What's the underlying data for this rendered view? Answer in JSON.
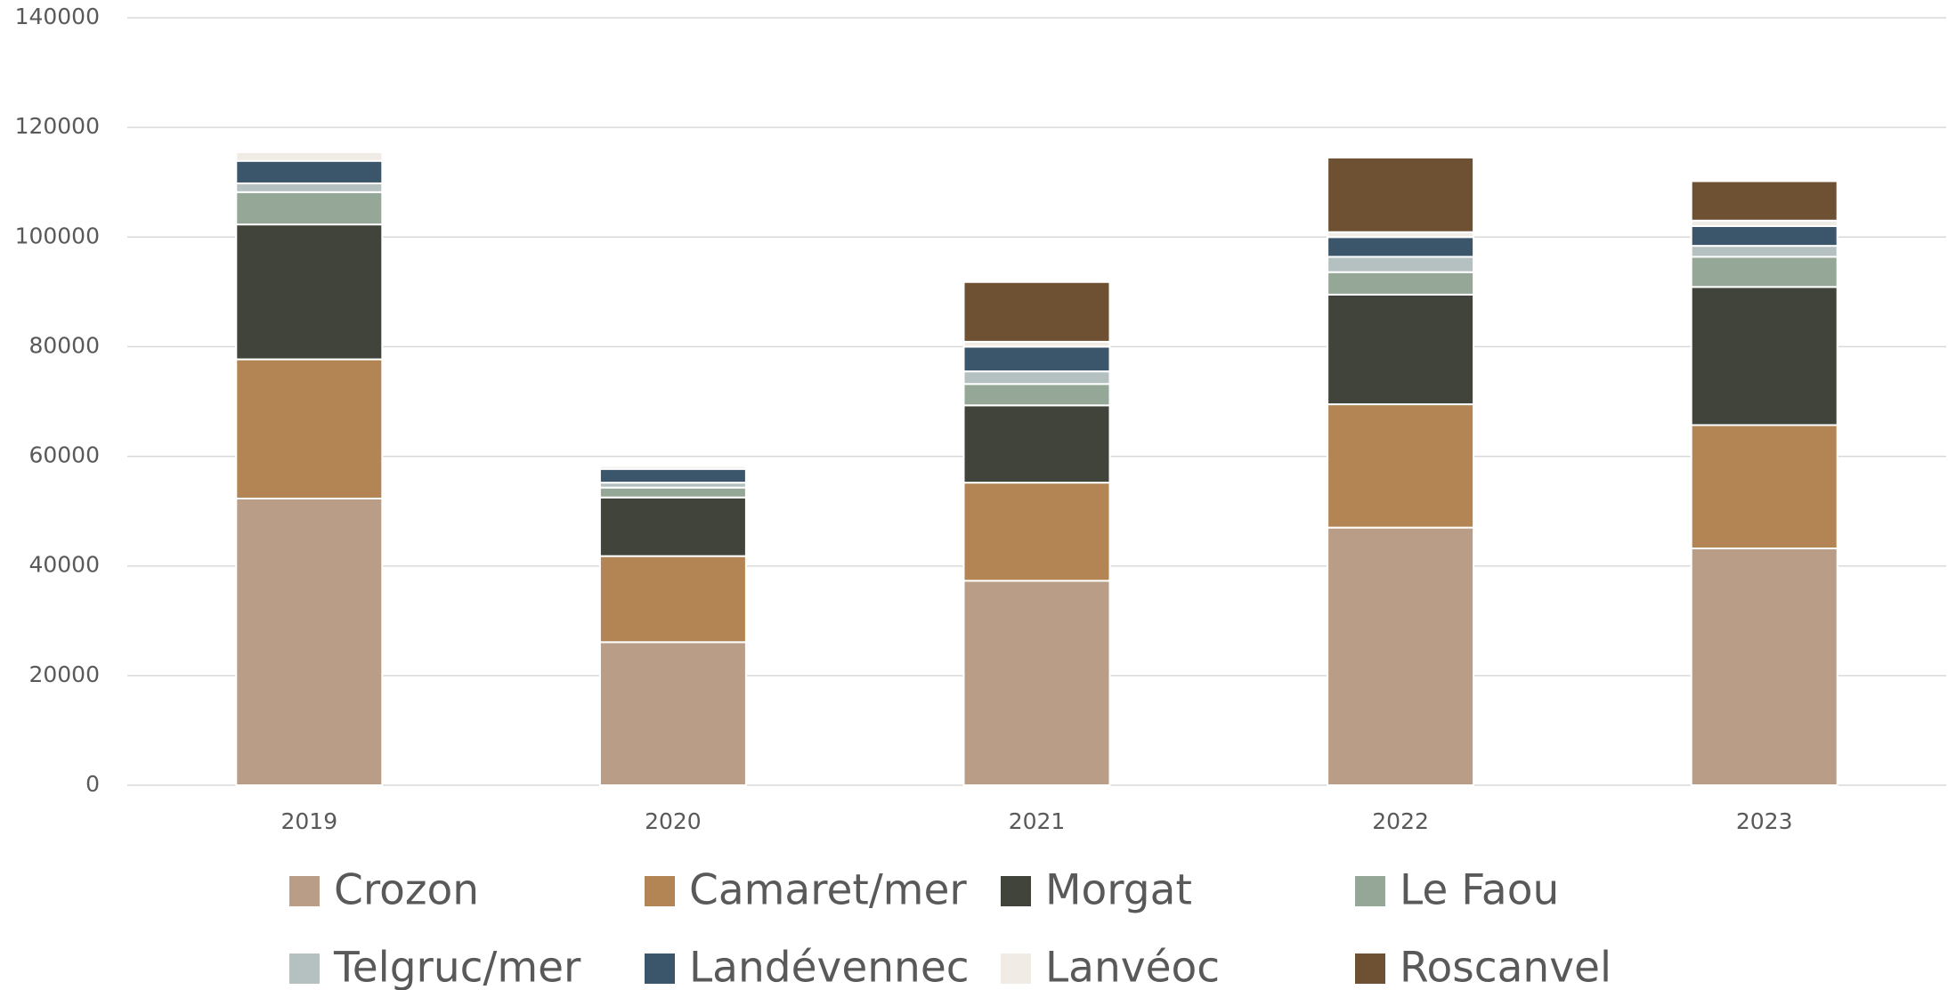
{
  "chart_data": {
    "type": "stacked_bar",
    "categories": [
      "2019",
      "2020",
      "2021",
      "2022",
      "2023"
    ],
    "series": [
      {
        "name": "Crozon",
        "color": "#b99d87",
        "values": [
          52300,
          26100,
          37300,
          47000,
          43200
        ]
      },
      {
        "name": "Camaret/mer",
        "color": "#b38454",
        "values": [
          25400,
          15700,
          17900,
          22500,
          22500
        ]
      },
      {
        "name": "Morgat",
        "color": "#41443a",
        "values": [
          24600,
          10700,
          14100,
          20000,
          25200
        ]
      },
      {
        "name": "Le Faou",
        "color": "#95a898",
        "values": [
          5900,
          1800,
          3900,
          4100,
          5500
        ]
      },
      {
        "name": "Telgruc/mer",
        "color": "#b5c1c1",
        "values": [
          1600,
          900,
          2300,
          2800,
          2000
        ]
      },
      {
        "name": "Landévennec",
        "color": "#3b556b",
        "values": [
          4100,
          2500,
          4500,
          3600,
          3600
        ]
      },
      {
        "name": "Lanvéoc",
        "color": "#f1ebe6",
        "values": [
          1600,
          500,
          900,
          900,
          1000
        ]
      },
      {
        "name": "Roscanvel",
        "color": "#6e5032",
        "values": [
          0,
          0,
          10900,
          13600,
          7200
        ]
      }
    ],
    "ylim": [
      0,
      140000
    ],
    "yticks": [
      0,
      20000,
      40000,
      60000,
      80000,
      100000,
      120000,
      140000
    ],
    "grid": true,
    "legend": "bottom"
  }
}
